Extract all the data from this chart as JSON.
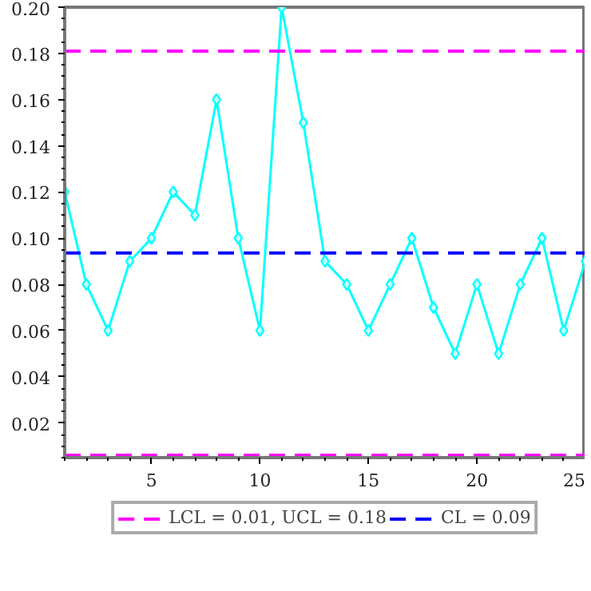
{
  "chart_data": {
    "type": "line",
    "x": [
      1,
      2,
      3,
      4,
      5,
      6,
      7,
      8,
      9,
      10,
      11,
      12,
      13,
      14,
      15,
      16,
      17,
      18,
      19,
      20,
      21,
      22,
      23,
      24,
      25
    ],
    "series": [
      {
        "color": "#00ffff",
        "values": [
          0.12,
          0.08,
          0.06,
          0.09,
          0.1,
          0.12,
          0.11,
          0.16,
          0.1,
          0.06,
          0.2,
          0.15,
          0.09,
          0.08,
          0.06,
          0.08,
          0.1,
          0.07,
          0.05,
          0.08,
          0.05,
          0.08,
          0.1,
          0.06,
          0.09
        ]
      }
    ],
    "marker": "diamond",
    "line_style": "solid",
    "xlim": [
      1,
      25
    ],
    "xticks": [
      5,
      10,
      15,
      20,
      25
    ],
    "ylim": [
      0.005,
      0.2
    ],
    "yticks": [
      {
        "value": 0.02,
        "label": "0.02"
      },
      {
        "value": 0.04,
        "label": "0.04"
      },
      {
        "value": 0.06,
        "label": "0.06"
      },
      {
        "value": 0.08,
        "label": "0.08"
      },
      {
        "value": 0.1,
        "label": "0.10"
      },
      {
        "value": 0.12,
        "label": "0.12"
      },
      {
        "value": 0.14,
        "label": "0.14"
      },
      {
        "value": 0.16,
        "label": "0.16"
      },
      {
        "value": 0.18,
        "label": "0.18"
      },
      {
        "value": 0.2,
        "label": "0.20"
      }
    ],
    "ref_lines": [
      {
        "axis": "y",
        "value": 0.006,
        "label": "LCL = 0.01, UCL = 0.18",
        "color": "#ff00ff",
        "line_style": "dashed"
      },
      {
        "axis": "y",
        "value": 0.181,
        "color": "#ff00ff",
        "line_style": "dashed"
      },
      {
        "axis": "y",
        "value": 0.0936,
        "label": "CL = 0.09",
        "color": "#0000ff",
        "line_style": "dashed"
      }
    ],
    "grid": false,
    "legend": "bottom"
  }
}
